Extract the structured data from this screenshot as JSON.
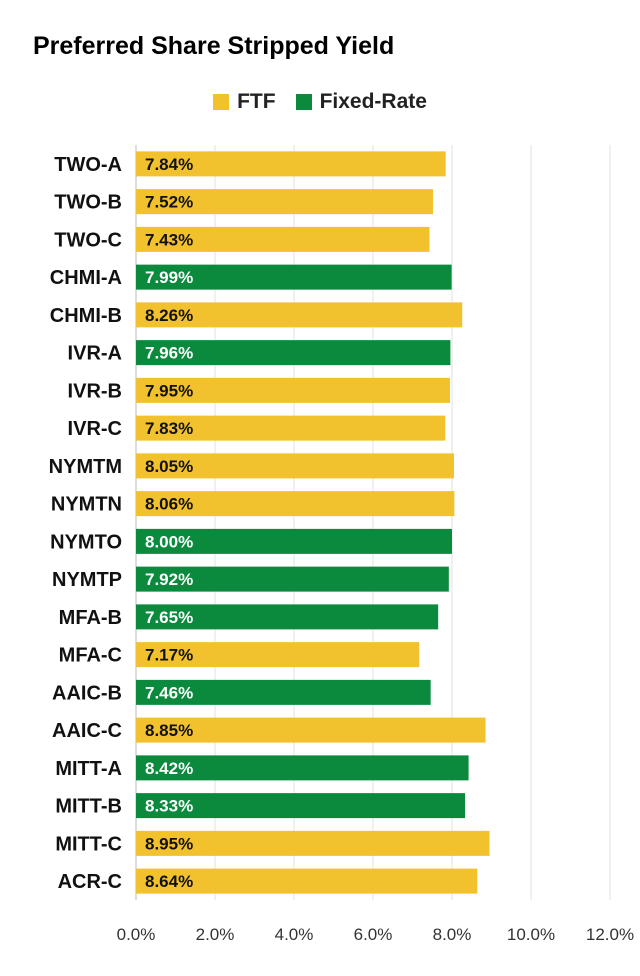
{
  "chart_data": {
    "type": "bar",
    "orientation": "horizontal",
    "title": "Preferred Share Stripped Yield",
    "xlim": [
      0,
      12
    ],
    "grid": true,
    "legend_position": "top",
    "x_ticks": [
      "0.0%",
      "2.0%",
      "4.0%",
      "6.0%",
      "8.0%",
      "10.0%",
      "12.0%"
    ],
    "series": [
      {
        "name": "FTF",
        "color": "#F2C12E"
      },
      {
        "name": "Fixed-Rate",
        "color": "#0B8A3E"
      }
    ],
    "categories": [
      "TWO-A",
      "TWO-B",
      "TWO-C",
      "CHMI-A",
      "CHMI-B",
      "IVR-A",
      "IVR-B",
      "IVR-C",
      "NYMTM",
      "NYMTN",
      "NYMTO",
      "NYMTP",
      "MFA-B",
      "MFA-C",
      "AAIC-B",
      "AAIC-C",
      "MITT-A",
      "MITT-B",
      "MITT-C",
      "ACR-C"
    ],
    "values": [
      7.84,
      7.52,
      7.43,
      7.99,
      8.26,
      7.96,
      7.95,
      7.83,
      8.05,
      8.06,
      8.0,
      7.92,
      7.65,
      7.17,
      7.46,
      8.85,
      8.42,
      8.33,
      8.95,
      8.64
    ],
    "labels": [
      "7.84%",
      "7.52%",
      "7.43%",
      "7.99%",
      "8.26%",
      "7.96%",
      "7.95%",
      "7.83%",
      "8.05%",
      "8.06%",
      "8.00%",
      "7.92%",
      "7.65%",
      "7.17%",
      "7.46%",
      "8.85%",
      "8.42%",
      "8.33%",
      "8.95%",
      "8.64%"
    ],
    "series_index": [
      0,
      0,
      0,
      1,
      0,
      1,
      0,
      0,
      0,
      0,
      1,
      1,
      1,
      0,
      1,
      0,
      1,
      1,
      0,
      0
    ]
  }
}
